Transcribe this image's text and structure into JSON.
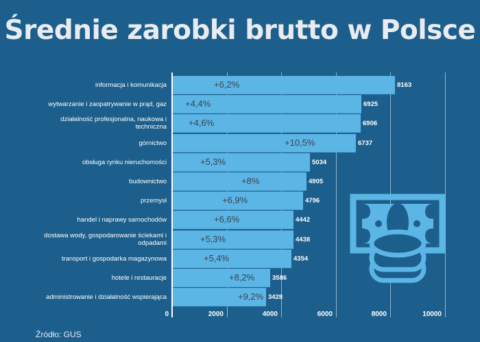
{
  "title": "Średnie zarobki brutto w Polsce",
  "source": "Źródło: GUS",
  "colors": {
    "background": "#1d5f8c",
    "bar": "#5bb5e5",
    "text": "#ffffff",
    "pct_text": "#3a4450"
  },
  "icon": "money-banknote-coins-icon",
  "chart_data": {
    "type": "bar",
    "orientation": "horizontal",
    "title": "Średnie zarobki brutto w Polsce",
    "xlabel": "",
    "ylabel": "",
    "xlim": [
      0,
      10000
    ],
    "xticks": [
      "0",
      "2000",
      "4000",
      "6000",
      "8000",
      "10000"
    ],
    "grid": true,
    "categories": [
      "informacja i komunikacja",
      "wytwarzanie i zaopatrywanie w prąd, gaz",
      "działalność profesjonalna, naukowa i techniczna",
      "górnictwo",
      "obsługa rynku nieruchomości",
      "budownictwo",
      "przemysł",
      "handel i naprawy samochodów",
      "dostawa wody, gospodarowanie ściekami i odpadami",
      "transport i gospodarka magazynowa",
      "hotele i restauracje",
      "administrowanie i działalność wspierająca"
    ],
    "values": [
      8163,
      6925,
      6906,
      6737,
      5034,
      4905,
      4796,
      4442,
      4438,
      4354,
      3586,
      3428
    ],
    "growth_labels": [
      "+6,2%",
      "+4,4%",
      "+4,6%",
      "+10,5%",
      "+5,3%",
      "+8%",
      "+6,9%",
      "+6,6%",
      "+5,3%",
      "+5,4%",
      "+8,2%",
      "+9,2%"
    ],
    "annotations": "growth % shown inside each bar",
    "source": "Źródło: GUS"
  },
  "rows": [
    {
      "cat1": "informacja i komunikacja",
      "cat2": "",
      "value": "8163",
      "pct": "+6,2%",
      "v": 8163,
      "px": 60
    },
    {
      "cat1": "wytwarzanie i zaopatrywanie w prąd, gaz",
      "cat2": "",
      "value": "6925",
      "pct": "+4,4%",
      "v": 6925,
      "px": 18
    },
    {
      "cat1": "działalność profesjonalna, naukowa i",
      "cat2": "techniczna",
      "value": "6906",
      "pct": "+4,6%",
      "v": 6906,
      "px": 23
    },
    {
      "cat1": "górnictwo",
      "cat2": "",
      "value": "6737",
      "pct": "+10,5%",
      "v": 6737,
      "px": 163
    },
    {
      "cat1": "obsługa rynku nieruchomości",
      "cat2": "",
      "value": "5034",
      "pct": "+5,3%",
      "v": 5034,
      "px": 40
    },
    {
      "cat1": "budownictwo",
      "cat2": "",
      "value": "4905",
      "pct": "+8%",
      "v": 4905,
      "px": 100
    },
    {
      "cat1": "przemysł",
      "cat2": "",
      "value": "4796",
      "pct": "+6,9%",
      "v": 4796,
      "px": 72
    },
    {
      "cat1": "handel i naprawy samochodów",
      "cat2": "",
      "value": "4442",
      "pct": "+6,6%",
      "v": 4442,
      "px": 60
    },
    {
      "cat1": "dostawa wody, gospodarowanie ściekami i",
      "cat2": "odpadami",
      "value": "4438",
      "pct": "+5,3%",
      "v": 4438,
      "px": 40
    },
    {
      "cat1": "transport i gospodarka magazynowa",
      "cat2": "",
      "value": "4354",
      "pct": "+5,4%",
      "v": 4354,
      "px": 45
    },
    {
      "cat1": "hotele i restauracje",
      "cat2": "",
      "value": "3586",
      "pct": "+8,2%",
      "v": 3586,
      "px": 82
    },
    {
      "cat1": "administrowanie i działalność wspierająca",
      "cat2": "",
      "value": "3428",
      "pct": "+9,2%",
      "v": 3428,
      "px": 95
    }
  ],
  "ticks": [
    "0",
    "2000",
    "4000",
    "6000",
    "8000",
    "10000"
  ]
}
